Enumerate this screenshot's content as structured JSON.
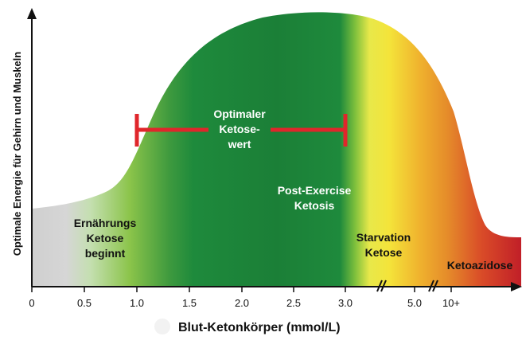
{
  "chart_data": {
    "type": "area",
    "title": "",
    "xlabel": "Blut-Ketonkörper (mmol/L)",
    "ylabel": "Optimale Energie für Gehirn und Muskeln",
    "x_ticks": [
      "0",
      "0.5",
      "1.0",
      "1.5",
      "2.0",
      "2.5",
      "3.0",
      "5.0",
      "10+"
    ],
    "axis_breaks": [
      "between 3.0 and 5.0",
      "between 5.0 and 10+"
    ],
    "grid": false,
    "zones": [
      {
        "name": "Ernährungs Ketose beginnt",
        "label_lines": [
          "Ernährungs",
          "Ketose",
          "beginnt"
        ],
        "color": "#8bc44a"
      },
      {
        "name": "Post-Exercise Ketosis",
        "label_lines": [
          "Post-Exercise",
          "Ketosis"
        ],
        "color": "#1e8a3c"
      },
      {
        "name": "Starvation Ketose",
        "label_lines": [
          "Starvation",
          "Ketose"
        ],
        "color": "#f4e43a"
      },
      {
        "name": "Ketoazidose",
        "label_lines": [
          "Ketoazidose"
        ],
        "color": "#c8232a"
      }
    ],
    "optimal_range": {
      "label_lines": [
        "Optimaler",
        "Ketose-",
        "wert"
      ],
      "from": "1.0",
      "to": "3.0",
      "color": "#e0262b"
    },
    "colors": {
      "gray": "#cfcfcf",
      "light_green": "#8bc44a",
      "green": "#1e8a3c",
      "dark_green": "#157a35",
      "yellow": "#f4e43a",
      "orange": "#e58b2a",
      "red": "#c8232a",
      "axis": "#111111"
    }
  }
}
